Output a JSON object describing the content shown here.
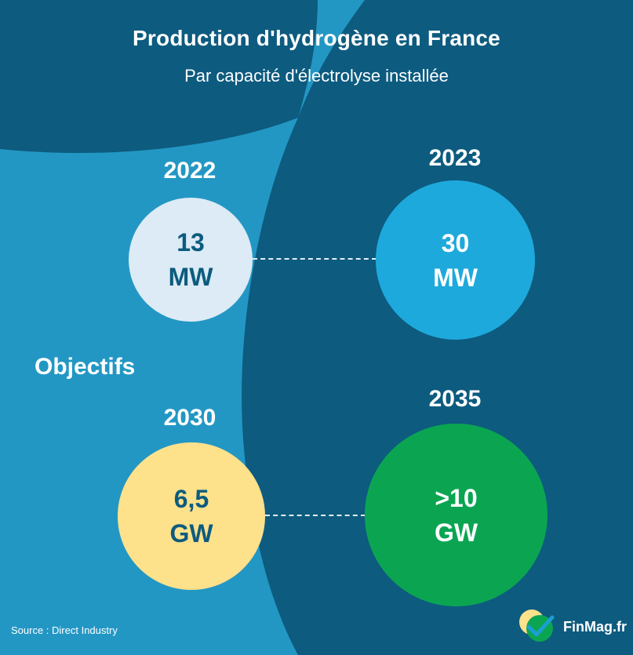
{
  "header": {
    "title": "Production d'hydrogène en France",
    "subtitle": "Par capacité d'électrolyse installée"
  },
  "section_label": "Objectifs",
  "items": [
    {
      "year": "2022",
      "value": "13",
      "unit": "MW",
      "color": "#dcebf5",
      "text_color": "#0d5b7f"
    },
    {
      "year": "2023",
      "value": "30",
      "unit": "MW",
      "color": "#1ea9dc",
      "text_color": "#ffffff"
    },
    {
      "year": "2030",
      "value": "6,5",
      "unit": "GW",
      "color": "#fde18b",
      "text_color": "#0d5b7f"
    },
    {
      "year": "2035",
      "value": ">10",
      "unit": "GW",
      "color": "#0ba552",
      "text_color": "#ffffff"
    }
  ],
  "footer": {
    "source": "Source : Direct Industry",
    "brand": "FinMag.fr"
  },
  "colors": {
    "dark_blue": "#0d5b7f",
    "medium_blue": "#2397c4"
  }
}
